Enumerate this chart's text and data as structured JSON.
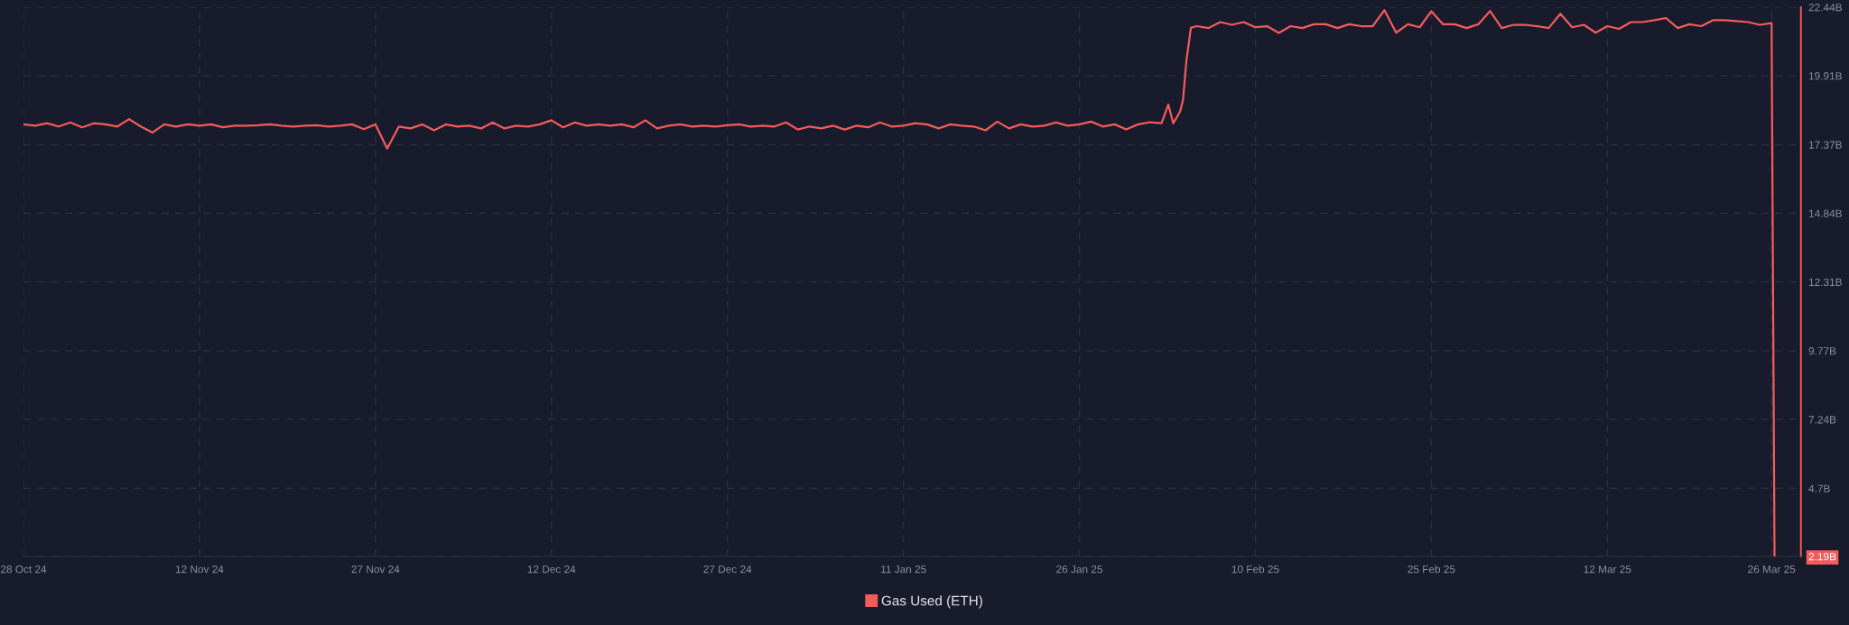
{
  "chart_data": {
    "type": "line",
    "x": [
      "2024-10-28",
      "2024-10-29",
      "2024-10-30",
      "2024-10-31",
      "2024-11-01",
      "2024-11-02",
      "2024-11-03",
      "2024-11-04",
      "2024-11-05",
      "2024-11-06",
      "2024-11-07",
      "2024-11-08",
      "2024-11-09",
      "2024-11-10",
      "2024-11-11",
      "2024-11-12",
      "2024-11-13",
      "2024-11-14",
      "2024-11-15",
      "2024-11-16",
      "2024-11-17",
      "2024-11-18",
      "2024-11-19",
      "2024-11-20",
      "2024-11-21",
      "2024-11-22",
      "2024-11-23",
      "2024-11-24",
      "2024-11-25",
      "2024-11-26",
      "2024-11-27",
      "2024-11-28",
      "2024-11-29",
      "2024-11-30",
      "2024-12-01",
      "2024-12-02",
      "2024-12-03",
      "2024-12-04",
      "2024-12-05",
      "2024-12-06",
      "2024-12-07",
      "2024-12-08",
      "2024-12-09",
      "2024-12-10",
      "2024-12-11",
      "2024-12-12",
      "2024-12-13",
      "2024-12-14",
      "2024-12-15",
      "2024-12-16",
      "2024-12-17",
      "2024-12-18",
      "2024-12-19",
      "2024-12-20",
      "2024-12-21",
      "2024-12-22",
      "2024-12-23",
      "2024-12-24",
      "2024-12-25",
      "2024-12-26",
      "2024-12-27",
      "2024-12-28",
      "2024-12-29",
      "2024-12-30",
      "2024-12-31",
      "2025-01-01",
      "2025-01-02",
      "2025-01-03",
      "2025-01-04",
      "2025-01-05",
      "2025-01-06",
      "2025-01-07",
      "2025-01-08",
      "2025-01-09",
      "2025-01-10",
      "2025-01-11",
      "2025-01-12",
      "2025-01-13",
      "2025-01-14",
      "2025-01-15",
      "2025-01-16",
      "2025-01-17",
      "2025-01-18",
      "2025-01-19",
      "2025-01-20",
      "2025-01-21",
      "2025-01-22",
      "2025-01-23",
      "2025-01-24",
      "2025-01-25",
      "2025-01-26",
      "2025-01-27",
      "2025-01-28",
      "2025-01-29",
      "2025-01-30",
      "2025-01-31",
      "2025-02-01",
      "2025-02-02",
      "2025-02-02T14:00",
      "2025-02-03",
      "2025-02-03T14:00",
      "2025-02-03T20:00",
      "2025-02-04T03:00",
      "2025-02-04T07:00",
      "2025-02-04T12:00",
      "2025-02-05",
      "2025-02-06",
      "2025-02-07",
      "2025-02-08",
      "2025-02-09",
      "2025-02-10",
      "2025-02-11",
      "2025-02-12",
      "2025-02-13",
      "2025-02-14",
      "2025-02-15",
      "2025-02-16",
      "2025-02-17",
      "2025-02-18",
      "2025-02-19",
      "2025-02-20",
      "2025-02-21",
      "2025-02-22",
      "2025-02-23",
      "2025-02-24",
      "2025-02-25",
      "2025-02-26",
      "2025-02-27",
      "2025-02-28",
      "2025-03-01",
      "2025-03-02",
      "2025-03-03",
      "2025-03-04",
      "2025-03-05",
      "2025-03-06",
      "2025-03-07",
      "2025-03-08",
      "2025-03-09",
      "2025-03-10",
      "2025-03-11",
      "2025-03-12",
      "2025-03-13",
      "2025-03-14",
      "2025-03-15",
      "2025-03-16",
      "2025-03-17",
      "2025-03-18",
      "2025-03-19",
      "2025-03-20",
      "2025-03-21",
      "2025-03-22",
      "2025-03-23",
      "2025-03-24",
      "2025-03-25",
      "2025-03-26",
      "2025-03-26T06:00"
    ],
    "series": [
      {
        "name": "Gas Used (ETH)",
        "color": "#f45b5b",
        "values": [
          18.12,
          18.07,
          18.16,
          18.04,
          18.19,
          18.01,
          18.16,
          18.12,
          18.04,
          18.31,
          18.04,
          17.82,
          18.12,
          18.04,
          18.12,
          18.07,
          18.12,
          18.01,
          18.07,
          18.07,
          18.09,
          18.12,
          18.07,
          18.04,
          18.07,
          18.09,
          18.04,
          18.07,
          18.12,
          17.94,
          18.12,
          17.23,
          18.04,
          17.97,
          18.12,
          17.9,
          18.12,
          18.04,
          18.07,
          17.97,
          18.19,
          17.97,
          18.07,
          18.04,
          18.12,
          18.27,
          18.01,
          18.19,
          18.07,
          18.12,
          18.07,
          18.12,
          18.01,
          18.27,
          17.97,
          18.07,
          18.12,
          18.04,
          18.07,
          18.04,
          18.09,
          18.12,
          18.04,
          18.07,
          18.04,
          18.19,
          17.93,
          18.04,
          17.97,
          18.07,
          17.93,
          18.07,
          18.01,
          18.19,
          18.04,
          18.07,
          18.16,
          18.12,
          17.97,
          18.12,
          18.07,
          18.04,
          17.9,
          18.22,
          17.97,
          18.12,
          18.04,
          18.07,
          18.19,
          18.07,
          18.12,
          18.22,
          18.04,
          18.12,
          17.93,
          18.12,
          18.2,
          18.16,
          18.85,
          18.16,
          18.59,
          19.02,
          20.48,
          21.0,
          21.68,
          21.74,
          21.67,
          21.89,
          21.79,
          21.89,
          21.7,
          21.74,
          21.49,
          21.74,
          21.67,
          21.81,
          21.81,
          21.67,
          21.81,
          21.74,
          21.74,
          22.33,
          21.5,
          21.81,
          21.7,
          22.29,
          21.81,
          21.81,
          21.67,
          21.81,
          22.3,
          21.67,
          21.79,
          21.79,
          21.74,
          21.67,
          22.2,
          21.7,
          21.79,
          21.5,
          21.74,
          21.64,
          21.89,
          21.89,
          21.96,
          22.04,
          21.67,
          21.81,
          21.74,
          21.96,
          21.96,
          21.93,
          21.89,
          21.79,
          21.85,
          2.19
        ]
      }
    ],
    "xlim": [
      "2024-10-28",
      "2025-03-28T12:00"
    ],
    "xticks": [
      {
        "value": "2024-10-28",
        "label": "28 Oct 24"
      },
      {
        "value": "2024-11-12",
        "label": "12 Nov 24"
      },
      {
        "value": "2024-11-27",
        "label": "27 Nov 24"
      },
      {
        "value": "2024-12-12",
        "label": "12 Dec 24"
      },
      {
        "value": "2024-12-27",
        "label": "27 Dec 24"
      },
      {
        "value": "2025-01-11",
        "label": "11 Jan 25"
      },
      {
        "value": "2025-01-26",
        "label": "26 Jan 25"
      },
      {
        "value": "2025-02-10",
        "label": "10 Feb 25"
      },
      {
        "value": "2025-02-25",
        "label": "25 Feb 25"
      },
      {
        "value": "2025-03-12",
        "label": "12 Mar 25"
      },
      {
        "value": "2025-03-26",
        "label": "26 Mar 25"
      }
    ],
    "ylim": [
      2.19,
      22.44
    ],
    "yticks": [
      {
        "value": 2.19,
        "label": "2.19B"
      },
      {
        "value": 4.7,
        "label": "4.7B"
      },
      {
        "value": 7.24,
        "label": "7.24B"
      },
      {
        "value": 9.77,
        "label": "9.77B"
      },
      {
        "value": 12.31,
        "label": "12.31B"
      },
      {
        "value": 14.84,
        "label": "14.84B"
      },
      {
        "value": 17.37,
        "label": "17.37B"
      },
      {
        "value": 19.91,
        "label": "19.91B"
      },
      {
        "value": 22.44,
        "label": "22.44B"
      }
    ],
    "grid": true,
    "legend": "bottom",
    "line_style": "solid"
  }
}
